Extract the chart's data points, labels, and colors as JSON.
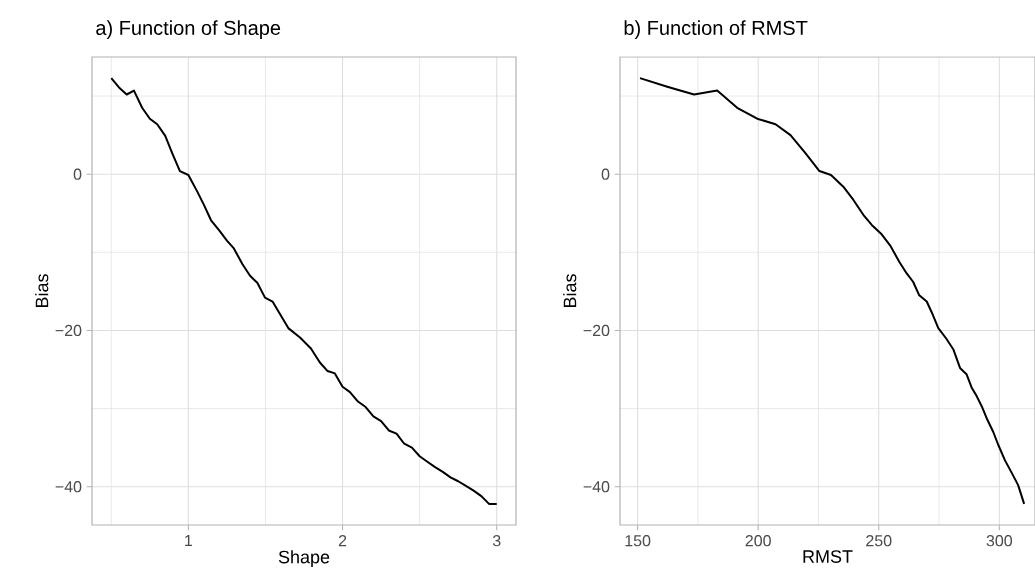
{
  "chart_data": [
    {
      "type": "line",
      "title": "a) Function of Shape",
      "xlabel": "Shape",
      "ylabel": "Bias",
      "grid": true,
      "xlim": [
        0.375,
        3.125
      ],
      "ylim": [
        -44.9,
        15.0
      ],
      "xticks": [
        {
          "value": 0.5,
          "label": null
        },
        1,
        {
          "value": 1.5,
          "label": null
        },
        2,
        {
          "value": 2.5,
          "label": null
        },
        3
      ],
      "yticks": [
        {
          "value": -40,
          "label": "−40"
        },
        {
          "value": -30,
          "label": null
        },
        {
          "value": -20,
          "label": "−20"
        },
        {
          "value": -10,
          "label": null
        },
        0,
        {
          "value": 10,
          "label": null
        }
      ],
      "color": "#000000",
      "x": [
        0.5,
        0.55,
        0.6,
        0.647,
        0.7,
        0.75,
        0.798,
        0.85,
        0.895,
        0.945,
        1.0,
        1.057,
        1.1,
        1.147,
        1.2,
        1.25,
        1.295,
        1.35,
        1.4,
        1.447,
        1.497,
        1.546,
        1.594,
        1.648,
        1.724,
        1.795,
        1.853,
        1.903,
        1.95,
        2.0,
        2.048,
        2.1,
        2.15,
        2.2,
        2.25,
        2.3,
        2.35,
        2.4,
        2.45,
        2.5,
        2.55,
        2.6,
        2.65,
        2.7,
        2.75,
        2.8,
        2.85,
        2.9,
        2.95,
        3.0
      ],
      "values": [
        12.3,
        11.1,
        10.2,
        10.7,
        8.5,
        7.1,
        6.4,
        4.9,
        2.7,
        0.4,
        -0.1,
        -2.2,
        -3.9,
        -5.9,
        -7.2,
        -8.5,
        -9.5,
        -11.5,
        -13.0,
        -13.9,
        -15.8,
        -16.3,
        -17.9,
        -19.7,
        -20.9,
        -22.3,
        -24.1,
        -25.2,
        -25.5,
        -27.2,
        -27.9,
        -29.1,
        -29.8,
        -31.0,
        -31.6,
        -32.8,
        -33.2,
        -34.5,
        -35.0,
        -36.1,
        -36.8,
        -37.5,
        -38.1,
        -38.8,
        -39.3,
        -39.9,
        -40.5,
        -41.2,
        -42.2,
        -42.2
      ]
    },
    {
      "type": "line",
      "title": "b) Function of RMST",
      "xlabel": "RMST",
      "ylabel": "Bias",
      "grid": true,
      "xlim": [
        142.7,
        314.8
      ],
      "ylim": [
        -44.9,
        15.0
      ],
      "xticks": [
        150,
        {
          "value": 175,
          "label": null
        },
        200,
        {
          "value": 225,
          "label": null
        },
        250,
        {
          "value": 275,
          "label": null
        },
        300
      ],
      "yticks": [
        {
          "value": -40,
          "label": "−40"
        },
        {
          "value": -30,
          "label": null
        },
        {
          "value": -20,
          "label": "−20"
        },
        {
          "value": -10,
          "label": null
        },
        0,
        {
          "value": 10,
          "label": null
        }
      ],
      "color": "#000000",
      "x": [
        151.0,
        162.3,
        173.4,
        183.0,
        191.3,
        199.6,
        207.2,
        213.4,
        219.6,
        225.4,
        230.2,
        235.3,
        239.5,
        243.6,
        247.1,
        251.2,
        254.7,
        258.5,
        261.6,
        264.3,
        266.8,
        269.9,
        272.0,
        274.7,
        277.9,
        280.9,
        283.7,
        286.4,
        288.5,
        290.6,
        292.7,
        295.0,
        297.5,
        299.5,
        302.3,
        305.1,
        307.8,
        310.3
      ],
      "values": [
        12.3,
        11.2,
        10.2,
        10.7,
        8.5,
        7.1,
        6.4,
        5.0,
        2.7,
        0.4,
        -0.1,
        -1.6,
        -3.3,
        -5.2,
        -6.5,
        -7.7,
        -9.1,
        -11.2,
        -12.7,
        -13.8,
        -15.5,
        -16.3,
        -17.7,
        -19.7,
        -21.0,
        -22.4,
        -24.8,
        -25.6,
        -27.3,
        -28.4,
        -29.7,
        -31.4,
        -33.0,
        -34.6,
        -36.6,
        -38.2,
        -39.8,
        -42.2
      ]
    }
  ]
}
